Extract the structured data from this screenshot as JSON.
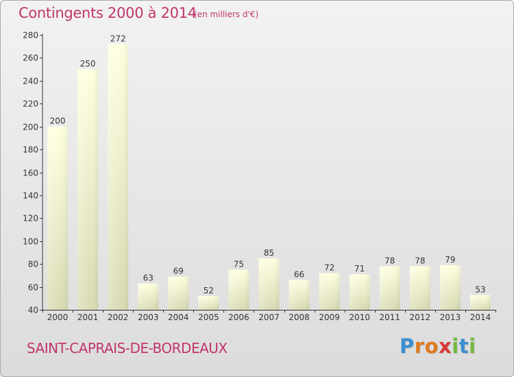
{
  "header": {
    "title": "Contingents 2000 à 2014",
    "subtitle": "(en milliers d'€)"
  },
  "footer": {
    "commune": "SAINT-CAPRAIS-DE-BORDEAUX",
    "logo_letters": [
      {
        "char": "P",
        "color": "#3a8fd1"
      },
      {
        "char": "r",
        "color": "#e07a1f"
      },
      {
        "char": "o",
        "color": "#e07a1f"
      },
      {
        "char": "x",
        "color": "#d93a3a"
      },
      {
        "char": "i",
        "color": "#74b93e"
      },
      {
        "char": "t",
        "color": "#3a8fd1"
      },
      {
        "char": "i",
        "color": "#74b93e"
      }
    ]
  },
  "colors": {
    "title": "#c0356b",
    "bar_top": "#ffffe0",
    "bar_bottom": "#d9dbb4",
    "axis": "#333333",
    "grid": "#e6e6e6"
  },
  "chart_data": {
    "type": "bar",
    "title": "Contingents 2000 à 2014",
    "subtitle": "(en milliers d'€)",
    "xlabel": "",
    "ylabel": "",
    "categories": [
      "2000",
      "2001",
      "2002",
      "2003",
      "2004",
      "2005",
      "2006",
      "2007",
      "2008",
      "2009",
      "2010",
      "2011",
      "2012",
      "2013",
      "2014"
    ],
    "values": [
      200,
      250,
      272,
      63,
      69,
      52,
      75,
      85,
      66,
      72,
      71,
      78,
      78,
      79,
      53
    ],
    "ylim": [
      40,
      280
    ],
    "yticks": [
      40,
      60,
      80,
      100,
      120,
      140,
      160,
      180,
      200,
      220,
      240,
      260,
      280
    ],
    "grid": false,
    "legend": "none"
  }
}
